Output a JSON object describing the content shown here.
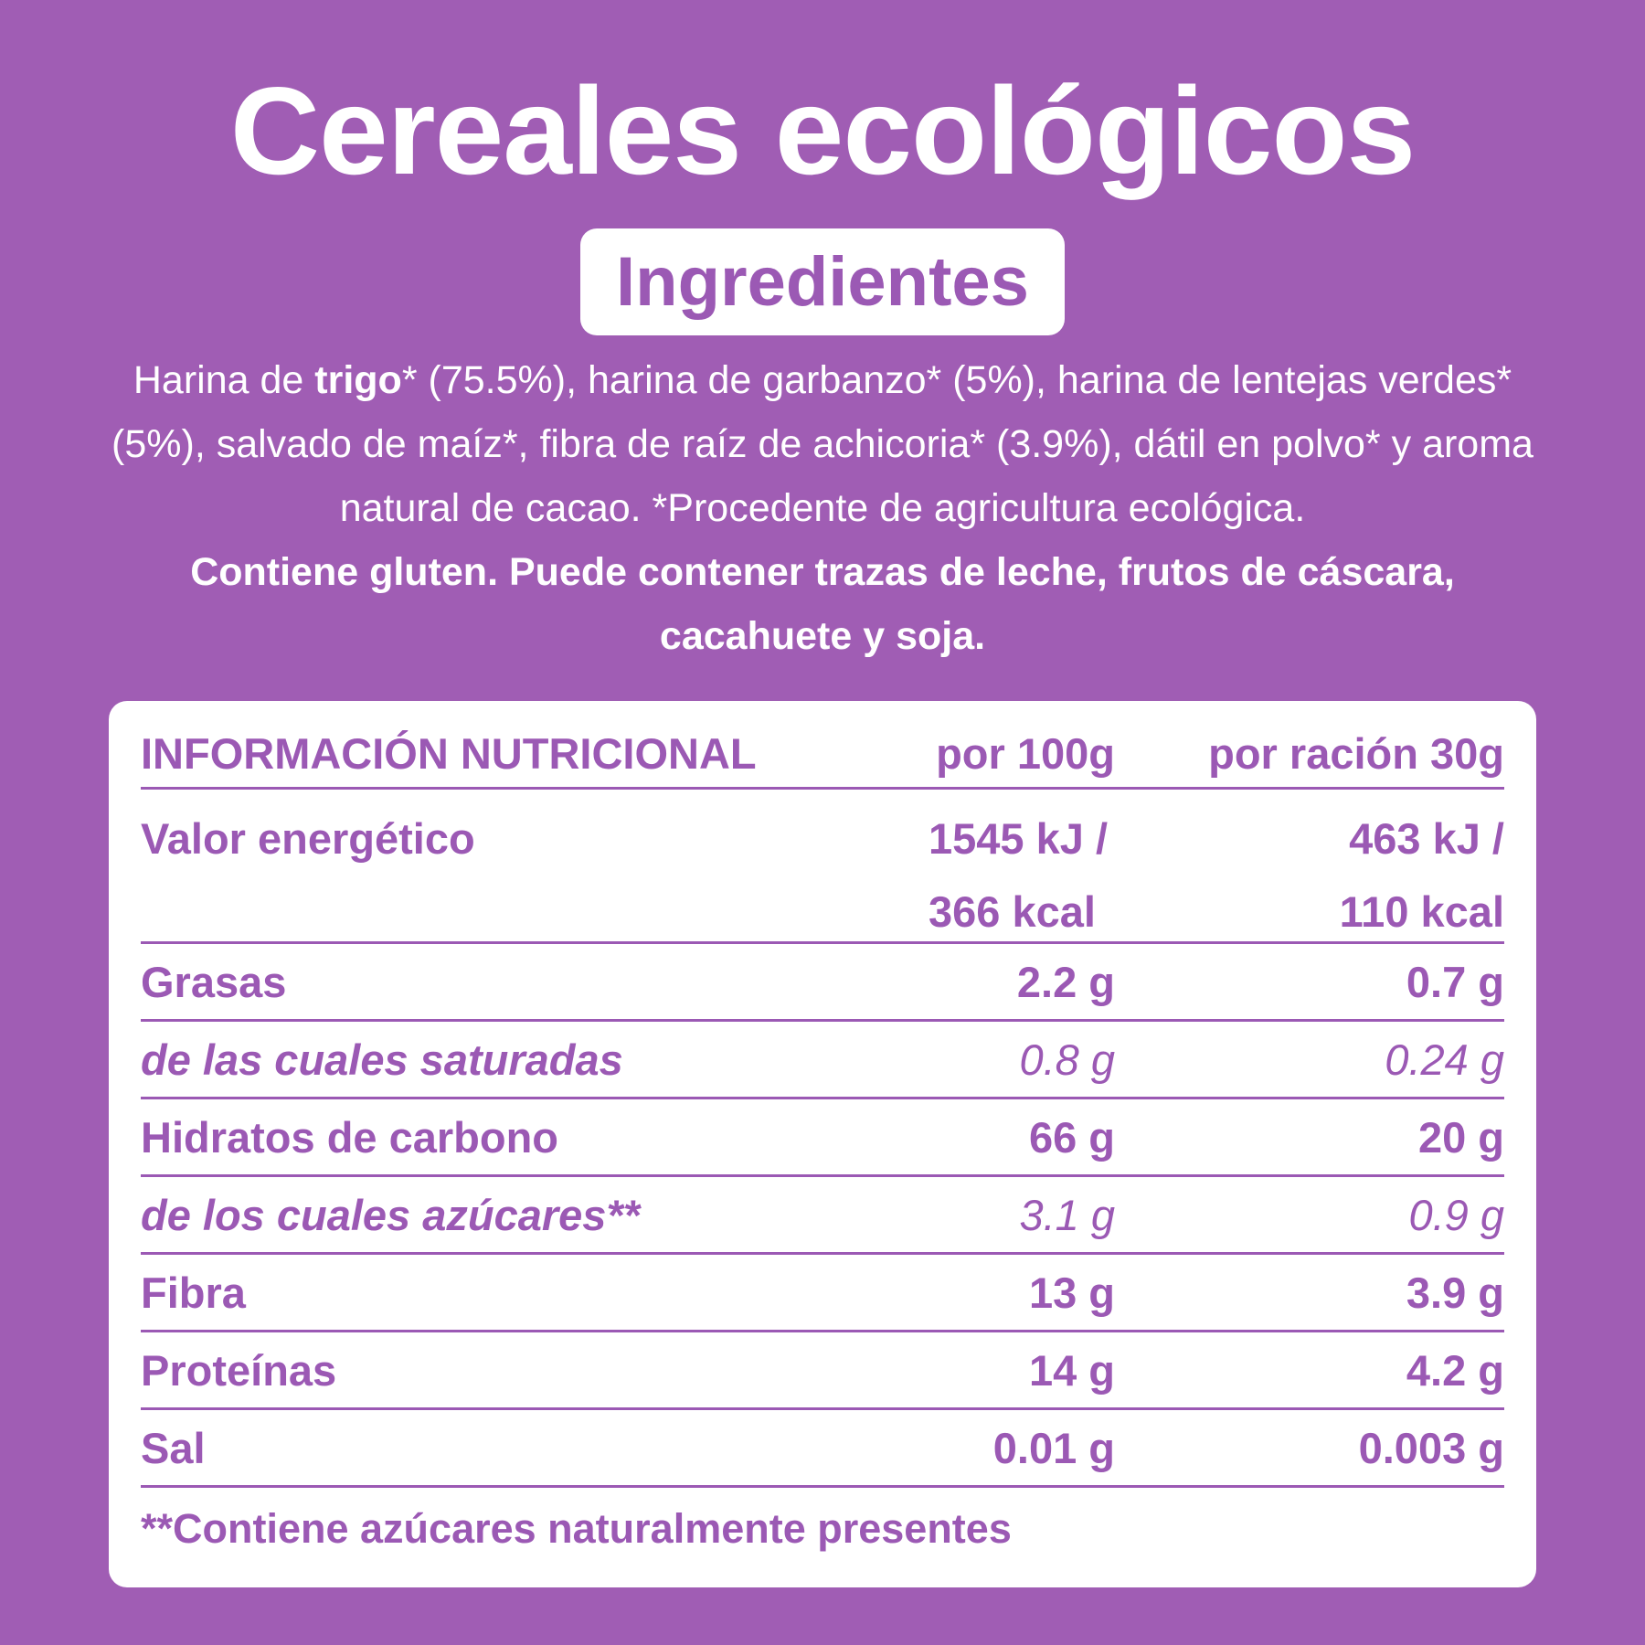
{
  "title": "Cereales ecológicos",
  "ingredients_heading": "Ingredientes",
  "ingredients": {
    "before": "Harina de ",
    "bold": "trigo",
    "after": "* (75.5%), harina de garbanzo* (5%), harina de lentejas verdes* (5%), salvado de maíz*, fibra de raíz de achicoria* (3.9%), dátil en polvo* y aroma natural de cacao. *Procedente de agricultura ecológica."
  },
  "allergens": "Contiene gluten. Puede contener trazas de leche, frutos de cáscara, cacahuete y soja.",
  "table": {
    "header": [
      "INFORMACIÓN NUTRICIONAL",
      "por 100g",
      "por ración 30g"
    ],
    "rows": [
      {
        "cells": [
          "Valor energético",
          [
            "1545 kJ /",
            "366 kcal"
          ],
          [
            "463 kJ /",
            "110 kcal"
          ]
        ]
      },
      {
        "cells": [
          "Grasas",
          "2.2 g",
          "0.7 g"
        ]
      },
      {
        "cells": [
          "de las cuales saturadas",
          "0.8 g",
          "0.24 g"
        ],
        "italic": true
      },
      {
        "cells": [
          "Hidratos de carbono",
          "66 g",
          "20 g"
        ]
      },
      {
        "cells": [
          "de los cuales azúcares**",
          "3.1 g",
          "0.9 g"
        ],
        "italic": true
      },
      {
        "cells": [
          "Fibra",
          "13 g",
          "3.9 g"
        ]
      },
      {
        "cells": [
          "Proteínas",
          "14 g",
          "4.2 g"
        ]
      },
      {
        "cells": [
          "Sal",
          "0.01 g",
          "0.003 g"
        ]
      }
    ],
    "footnote": "**Contiene azúcares naturalmente presentes"
  }
}
